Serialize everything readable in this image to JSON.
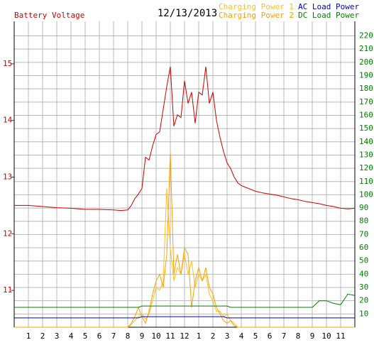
{
  "chart_data": {
    "type": "line",
    "title": "12/13/2013",
    "ylabel": "Battery Voltage",
    "ylabel_color": "#cc0000",
    "y2_color": "#008000",
    "x": [
      0,
      1,
      2,
      3,
      4,
      5,
      6,
      7,
      7.5,
      8,
      8.25,
      8.5,
      8.75,
      9,
      9.25,
      9.5,
      9.75,
      10,
      10.25,
      10.5,
      10.75,
      11,
      11.25,
      11.5,
      11.75,
      12,
      12.25,
      12.5,
      12.75,
      13,
      13.25,
      13.5,
      13.75,
      14,
      14.25,
      14.5,
      14.75,
      15,
      15.25,
      15.5,
      15.75,
      16,
      16.5,
      17,
      17.5,
      18,
      18.5,
      19,
      19.5,
      20,
      20.5,
      21,
      21.5,
      22,
      22.5,
      23,
      23.5,
      24
    ],
    "series": [
      {
        "name": "Battery Voltage",
        "color": "#cc0000",
        "axis": "y",
        "values": [
          12.5,
          12.5,
          12.48,
          12.46,
          12.45,
          12.43,
          12.43,
          12.42,
          12.41,
          12.42,
          12.5,
          12.62,
          12.7,
          12.8,
          13.35,
          13.3,
          13.55,
          13.75,
          13.8,
          14.2,
          14.6,
          14.95,
          13.9,
          14.1,
          14.05,
          14.7,
          14.3,
          14.5,
          13.95,
          14.5,
          14.45,
          14.95,
          14.3,
          14.5,
          14.0,
          13.7,
          13.45,
          13.25,
          13.15,
          13.0,
          12.9,
          12.85,
          12.8,
          12.75,
          12.72,
          12.7,
          12.68,
          12.65,
          12.62,
          12.6,
          12.57,
          12.55,
          12.53,
          12.5,
          12.48,
          12.45,
          12.44,
          12.45
        ]
      },
      {
        "name": "Charging Power 1",
        "color": "#ffc020",
        "axis": "y2",
        "values": [
          0,
          0,
          0,
          0,
          0,
          0,
          0,
          0,
          0,
          0,
          2,
          5,
          8,
          10,
          6,
          10,
          20,
          30,
          28,
          35,
          105,
          60,
          35,
          45,
          40,
          55,
          40,
          50,
          30,
          40,
          35,
          40,
          25,
          20,
          12,
          12,
          8,
          10,
          5,
          3,
          0,
          0,
          0,
          0,
          0,
          0,
          0,
          0,
          0,
          0,
          0,
          0,
          0,
          0,
          0,
          0,
          0,
          0
        ]
      },
      {
        "name": "Charging Power 2",
        "color": "#ffa000",
        "axis": "y2",
        "values": [
          0,
          0,
          0,
          0,
          0,
          0,
          0,
          0,
          0,
          0,
          3,
          8,
          15,
          8,
          3,
          12,
          25,
          35,
          40,
          30,
          55,
          132,
          40,
          55,
          40,
          60,
          55,
          15,
          35,
          45,
          35,
          45,
          30,
          25,
          15,
          10,
          5,
          3,
          5,
          1,
          0,
          0,
          0,
          0,
          0,
          0,
          0,
          0,
          0,
          0,
          0,
          0,
          0,
          0,
          0,
          0,
          0,
          0
        ]
      },
      {
        "name": "AC Load Power",
        "color": "#0000cc",
        "axis": "y2",
        "values": [
          7,
          7,
          7,
          7,
          7,
          7,
          7,
          7,
          7,
          7,
          7,
          7,
          7,
          8,
          8,
          8,
          8,
          8,
          8,
          8,
          8,
          8,
          8,
          8,
          8,
          8,
          8,
          8,
          8,
          8,
          8,
          8,
          8,
          8,
          8,
          8,
          8,
          7,
          7,
          7,
          7,
          7,
          7,
          7,
          7,
          7,
          7,
          7,
          7,
          7,
          7,
          7,
          7,
          7,
          7,
          7,
          7,
          7
        ]
      },
      {
        "name": "DC Load Power",
        "color": "#008000",
        "axis": "y2",
        "values": [
          15,
          15,
          15,
          15,
          15,
          15,
          15,
          15,
          15,
          15,
          15,
          15,
          15,
          16,
          16,
          16,
          16,
          16,
          16,
          16,
          16,
          16,
          16,
          16,
          16,
          16,
          16,
          16,
          16,
          16,
          16,
          16,
          16,
          16,
          16,
          16,
          16,
          16,
          15,
          15,
          15,
          15,
          15,
          15,
          15,
          15,
          15,
          15,
          15,
          15,
          15,
          15,
          20,
          20,
          18,
          17,
          25,
          24
        ]
      }
    ],
    "xlim": [
      0,
      24
    ],
    "ylim": [
      10.35,
      15.75
    ],
    "y2lim": [
      0,
      231
    ],
    "xticks": [
      1,
      2,
      3,
      4,
      5,
      6,
      7,
      8,
      9,
      10,
      11,
      12,
      {
        "value": 13,
        "label": "1"
      },
      {
        "value": 14,
        "label": "2"
      },
      {
        "value": 15,
        "label": "3"
      },
      {
        "value": 16,
        "label": "4"
      },
      {
        "value": 17,
        "label": "5"
      },
      {
        "value": 18,
        "label": "6"
      },
      {
        "value": 19,
        "label": "7"
      },
      {
        "value": 20,
        "label": "8"
      },
      {
        "value": 21,
        "label": "9"
      },
      {
        "value": 22,
        "label": "10"
      },
      {
        "value": 23,
        "label": "11"
      }
    ],
    "yticks": [
      11,
      12,
      13,
      14,
      15
    ],
    "y2ticks": [
      10,
      20,
      30,
      40,
      50,
      60,
      70,
      80,
      90,
      100,
      110,
      120,
      130,
      140,
      150,
      160,
      170,
      180,
      190,
      200,
      210,
      220
    ],
    "grid": true
  }
}
